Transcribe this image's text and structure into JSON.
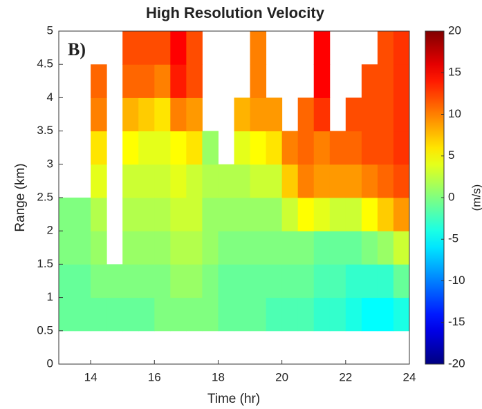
{
  "chart_data": {
    "type": "heatmap",
    "title": "High Resolution Velocity",
    "panel_label": "B)",
    "x_label": "Time (hr)",
    "y_label": "Range (km)",
    "colorbar_label": "(m/s)",
    "colormap": "jet",
    "xlim": [
      13,
      24
    ],
    "xticks": [
      14,
      16,
      18,
      20,
      22,
      24
    ],
    "ylim": [
      0,
      5
    ],
    "yticks": [
      0,
      0.5,
      1,
      1.5,
      2,
      2.5,
      3,
      3.5,
      4,
      4.5,
      5
    ],
    "zlim": [
      -20,
      20
    ],
    "zticks": [
      -20,
      -15,
      -10,
      -5,
      0,
      5,
      10,
      15,
      20
    ],
    "xbins": [
      13,
      13.5,
      14,
      14.5,
      15,
      15.5,
      16,
      16.5,
      17,
      17.5,
      18,
      18.5,
      19,
      19.5,
      20,
      20.5,
      21,
      21.5,
      22,
      22.5,
      23,
      23.5,
      24
    ],
    "ybins": [
      0.5,
      1,
      1.5,
      2,
      2.5,
      3,
      3.5,
      4,
      4.5,
      5
    ],
    "z": [
      [
        -1,
        -1,
        -1,
        -1,
        -1,
        -1,
        0,
        0,
        0,
        0,
        -1,
        -1,
        -1,
        -2,
        -2,
        -2,
        -3,
        -3,
        -4,
        -5,
        -5,
        -4
      ],
      [
        -1,
        -1,
        0,
        0,
        0,
        0,
        0,
        1,
        1,
        0,
        -1,
        -1,
        -1,
        -1,
        -1,
        -1,
        -2,
        -2,
        -3,
        -3,
        -3,
        -1
      ],
      [
        0,
        0,
        1,
        null,
        1,
        1,
        1,
        2,
        2,
        1,
        0,
        0,
        0,
        0,
        0,
        0,
        -1,
        -1,
        -1,
        0,
        1,
        3
      ],
      [
        0,
        0,
        2,
        null,
        2,
        2,
        2,
        3,
        3,
        1,
        1,
        1,
        1,
        1,
        3,
        5,
        4,
        3,
        3,
        5,
        7,
        9
      ],
      [
        null,
        null,
        4,
        null,
        3,
        3,
        3,
        4,
        3,
        2,
        2,
        2,
        3,
        3,
        7,
        10,
        9,
        9,
        9,
        10,
        11,
        12
      ],
      [
        null,
        null,
        6,
        null,
        5,
        4,
        4,
        5,
        6,
        1,
        null,
        4,
        5,
        6,
        10,
        11,
        10,
        11,
        11,
        12,
        12,
        13
      ],
      [
        null,
        null,
        10,
        null,
        8,
        7,
        6,
        10,
        9,
        null,
        null,
        8,
        9,
        9,
        null,
        11,
        13,
        null,
        12,
        12,
        12,
        13
      ],
      [
        null,
        null,
        11,
        null,
        11,
        11,
        10,
        14,
        12,
        null,
        null,
        null,
        10,
        null,
        null,
        null,
        15,
        null,
        null,
        12,
        12,
        13
      ],
      [
        null,
        null,
        null,
        null,
        12,
        12,
        12,
        15,
        12,
        null,
        null,
        null,
        10,
        null,
        null,
        null,
        15,
        null,
        null,
        null,
        12,
        13
      ]
    ]
  }
}
